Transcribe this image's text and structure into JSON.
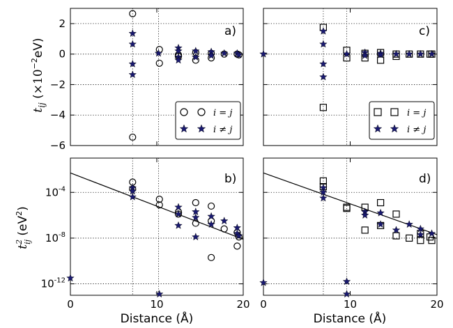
{
  "figure": {
    "ylabel_top_html": "",
    "ylabel_bottom": "",
    "xlabel": "Distance (Å)"
  },
  "panels": {
    "a": {
      "label": "a)"
    },
    "b": {
      "label": "b)"
    },
    "c": {
      "label": "c)"
    },
    "d": {
      "label": "d)"
    }
  },
  "legend_top": {
    "entries": [
      {
        "label": "i = j",
        "marker": "circle"
      },
      {
        "label": "i ≠ j",
        "marker": "star"
      }
    ]
  },
  "legend_right": {
    "entries": [
      {
        "label": "i = j",
        "marker": "square"
      },
      {
        "label": "i ≠ j",
        "marker": "star"
      }
    ]
  },
  "colors": {
    "star": "#191970",
    "ink": "#000000"
  },
  "chart_data": [
    {
      "id": "a",
      "type": "scatter",
      "title": "a)",
      "xlabel": "",
      "ylabel": "t_ij (×10^-2 eV)",
      "xlim": [
        0,
        20
      ],
      "ylim": [
        -6,
        3
      ],
      "xticks": [
        0,
        10,
        20
      ],
      "yticks": [
        -6,
        -4,
        -2,
        0,
        2
      ],
      "x_gridlines": [
        7.2,
        10.2
      ],
      "y_gridlines": [
        -4,
        -2,
        0,
        2
      ],
      "series": [
        {
          "name": "i = j",
          "marker": "circle",
          "x": [
            7.2,
            7.2,
            10.3,
            10.3,
            12.5,
            12.5,
            14.5,
            14.5,
            16.3,
            16.3,
            17.8,
            19.3,
            19.5
          ],
          "y": [
            2.65,
            -5.45,
            0.3,
            -0.6,
            -0.15,
            -0.05,
            0.1,
            -0.4,
            0.05,
            -0.25,
            0.0,
            0.0,
            -0.05
          ]
        },
        {
          "name": "i ≠ j",
          "marker": "star",
          "x": [
            7.2,
            7.2,
            7.2,
            7.2,
            10.2,
            12.5,
            12.5,
            12.5,
            12.5,
            14.5,
            14.5,
            16.3,
            16.3,
            17.8,
            19.3,
            19.5
          ],
          "y": [
            1.35,
            0.65,
            -0.65,
            -1.35,
            0.05,
            0.4,
            0.2,
            -0.2,
            -0.4,
            0.2,
            -0.2,
            0.15,
            -0.1,
            0.05,
            0.05,
            -0.05
          ]
        }
      ]
    },
    {
      "id": "b",
      "type": "scatter",
      "title": "b)",
      "xlabel": "Distance (Å)",
      "ylabel": "t_ij^2 (eV^2)",
      "yscale": "log",
      "xlim": [
        0,
        20
      ],
      "ylim_exp": [
        -13,
        -1
      ],
      "xticks": [
        0,
        10,
        20
      ],
      "yticks_exp": [
        -12,
        -8,
        -4
      ],
      "x_gridlines": [
        7.2,
        10.2
      ],
      "y_gridlines_exp": [
        -12,
        -8,
        -4
      ],
      "fit_line_log10": {
        "x": [
          0,
          20
        ],
        "y": [
          -2.3,
          -8.1
        ]
      },
      "series": [
        {
          "name": "i = j",
          "marker": "circle",
          "x": [
            7.2,
            7.2,
            10.3,
            10.3,
            12.5,
            12.5,
            14.5,
            14.5,
            16.3,
            16.3,
            16.3,
            17.8,
            19.3,
            19.3,
            19.5
          ],
          "y_log10": [
            -3.1,
            -3.7,
            -4.6,
            -5.1,
            -5.7,
            -5.9,
            -4.9,
            -6.7,
            -5.2,
            -6.5,
            -9.7,
            -7.2,
            -7.5,
            -8.7,
            -7.9
          ]
        },
        {
          "name": "i ≠ j",
          "marker": "star",
          "x": [
            0.0,
            7.2,
            7.2,
            7.2,
            10.3,
            12.5,
            12.5,
            12.5,
            14.5,
            14.5,
            14.5,
            16.3,
            16.3,
            17.8,
            19.3,
            19.3,
            19.5
          ],
          "y_log10": [
            -11.5,
            -3.6,
            -3.9,
            -4.4,
            -12.9,
            -5.3,
            -5.9,
            -6.9,
            -5.7,
            -6.2,
            -7.9,
            -6.1,
            -6.8,
            -6.5,
            -7.1,
            -7.6,
            -7.8
          ]
        }
      ]
    },
    {
      "id": "c",
      "type": "scatter",
      "title": "c)",
      "xlabel": "",
      "ylabel": "",
      "xlim": [
        0,
        20
      ],
      "ylim": [
        -6,
        3
      ],
      "xticks": [
        0,
        10,
        20
      ],
      "yticks": [
        -6,
        -4,
        -2,
        0,
        2
      ],
      "x_gridlines": [
        6.9,
        9.6
      ],
      "y_gridlines": [
        -4,
        -2,
        0,
        2
      ],
      "series": [
        {
          "name": "i = j",
          "marker": "square",
          "x": [
            6.9,
            6.9,
            9.6,
            9.6,
            11.7,
            11.7,
            13.5,
            13.5,
            15.3,
            15.3,
            16.8,
            18.1,
            19.2,
            19.4
          ],
          "y": [
            1.75,
            -3.5,
            0.25,
            -0.25,
            0.05,
            -0.25,
            0.1,
            -0.4,
            0.0,
            -0.15,
            0.0,
            0.0,
            0.0,
            0.0
          ]
        },
        {
          "name": "i ≠ j",
          "marker": "star",
          "x": [
            0.0,
            6.9,
            6.9,
            6.9,
            6.9,
            9.6,
            11.7,
            11.7,
            13.5,
            13.5,
            15.3,
            16.8,
            18.1,
            19.4
          ],
          "y": [
            0.0,
            1.5,
            0.65,
            -0.65,
            -1.5,
            0.0,
            0.1,
            -0.1,
            0.05,
            -0.05,
            0.0,
            0.0,
            0.0,
            0.0
          ]
        }
      ]
    },
    {
      "id": "d",
      "type": "scatter",
      "title": "d)",
      "xlabel": "Distance (Å)",
      "ylabel": "",
      "yscale": "log",
      "xlim": [
        0,
        20
      ],
      "ylim_exp": [
        -13,
        -1
      ],
      "xticks": [
        0,
        10,
        20
      ],
      "yticks_exp": [
        -12,
        -8,
        -4
      ],
      "x_gridlines": [
        6.9,
        9.6
      ],
      "y_gridlines_exp": [
        -12,
        -8,
        -4
      ],
      "fit_line_log10": {
        "x": [
          0,
          20
        ],
        "y": [
          -2.3,
          -7.7
        ]
      },
      "series": [
        {
          "name": "i = j",
          "marker": "square",
          "x": [
            6.9,
            6.9,
            9.6,
            9.6,
            11.7,
            11.7,
            13.5,
            13.5,
            15.3,
            15.3,
            16.8,
            18.1,
            18.1,
            19.2,
            19.4
          ],
          "y_log10": [
            -3.0,
            -3.5,
            -5.3,
            -5.4,
            -5.3,
            -7.3,
            -4.9,
            -6.9,
            -5.9,
            -7.8,
            -8.0,
            -7.6,
            -8.2,
            -7.9,
            -8.2
          ]
        },
        {
          "name": "i ≠ j",
          "marker": "star",
          "x": [
            0.0,
            6.9,
            6.9,
            6.9,
            9.6,
            9.6,
            11.7,
            11.7,
            13.5,
            13.5,
            15.3,
            16.8,
            18.1,
            18.1,
            19.4
          ],
          "y_log10": [
            -11.9,
            -3.6,
            -4.0,
            -4.5,
            -11.8,
            -12.9,
            -5.7,
            -6.0,
            -5.8,
            -6.8,
            -7.3,
            -6.8,
            -7.2,
            -7.7,
            -7.6
          ]
        }
      ]
    }
  ]
}
